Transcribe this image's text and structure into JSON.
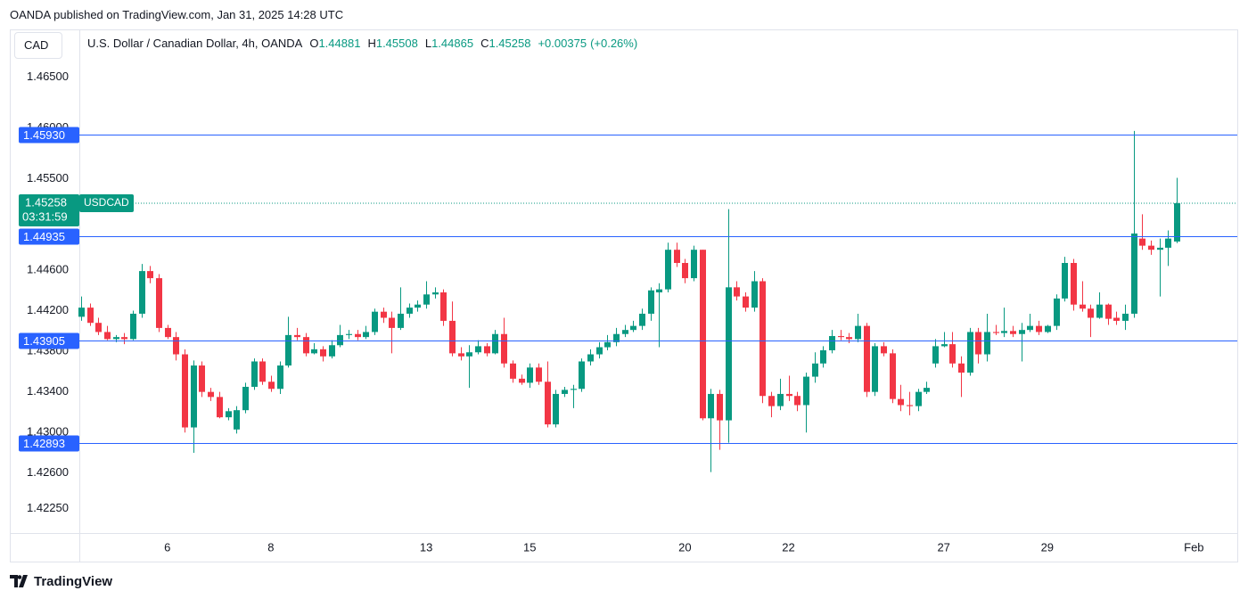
{
  "publisher_note": "OANDA published on TradingView.com, Jan 31, 2025 14:28 UTC",
  "footer": {
    "brand": "TradingView"
  },
  "chart_data": {
    "type": "candlestick",
    "title": "U.S. Dollar / Canadian Dollar, 4h, OANDA",
    "symbol": "USDCAD",
    "currency": "CAD",
    "countdown": "03:31:59",
    "ohlc_keys": [
      "O",
      "H",
      "L",
      "C"
    ],
    "change": {
      "value": 0.00375,
      "label": "+0.00375"
    },
    "change_percent": {
      "value": 0.26,
      "label": "(+0.26%)"
    },
    "up_color": "#089981",
    "down_color": "#f23645",
    "level_color": "#2962ff",
    "grid": false,
    "ylim": [
      1.4201,
      1.4697
    ],
    "yticks": [
      {
        "value": 1.465,
        "label": "1.46500"
      },
      {
        "value": 1.46,
        "label": "1.46000"
      },
      {
        "value": 1.455,
        "label": "1.45500"
      },
      {
        "value": 1.446,
        "label": "1.44600"
      },
      {
        "value": 1.442,
        "label": "1.44200"
      },
      {
        "value": 1.438,
        "label": "1.43800"
      },
      {
        "value": 1.434,
        "label": "1.43400"
      },
      {
        "value": 1.43,
        "label": "1.43000"
      },
      {
        "value": 1.426,
        "label": "1.42600"
      },
      {
        "value": 1.4225,
        "label": "1.42250"
      }
    ],
    "levels": [
      {
        "value": 1.4593,
        "label": "1.45930"
      },
      1.44935,
      1.43905,
      1.42893
    ],
    "categories": [
      null,
      null,
      null,
      null,
      null,
      null,
      null,
      null,
      null,
      null,
      "6",
      null,
      null,
      null,
      null,
      null,
      null,
      null,
      null,
      null,
      null,
      null,
      "8",
      null,
      null,
      null,
      null,
      null,
      null,
      null,
      null,
      null,
      null,
      null,
      null,
      null,
      null,
      null,
      null,
      null,
      "13",
      null,
      null,
      null,
      null,
      null,
      null,
      null,
      null,
      null,
      null,
      null,
      "15",
      null,
      null,
      null,
      null,
      null,
      null,
      null,
      null,
      null,
      null,
      null,
      null,
      null,
      null,
      null,
      null,
      null,
      "20",
      null,
      null,
      null,
      null,
      null,
      null,
      null,
      null,
      null,
      null,
      null,
      "22",
      null,
      null,
      null,
      null,
      null,
      null,
      null,
      null,
      null,
      null,
      null,
      null,
      null,
      null,
      null,
      null,
      null,
      "27",
      null,
      null,
      null,
      null,
      null,
      null,
      null,
      null,
      null,
      null,
      null,
      "29",
      null,
      null,
      null,
      null,
      null,
      null,
      null,
      null,
      null,
      null,
      null,
      null,
      null,
      null,
      null,
      null,
      "Feb"
    ],
    "open": [
      1.4414,
      1.4423,
      1.4408,
      1.4399,
      1.4392,
      1.4394,
      1.4392,
      1.4417,
      1.4459,
      1.4452,
      1.4403,
      1.4394,
      1.4377,
      1.4305,
      1.4366,
      1.434,
      1.4335,
      1.4315,
      1.4303,
      1.4322,
      1.4345,
      1.437,
      1.435,
      1.4343,
      1.4366,
      1.4396,
      1.4394,
      1.4378,
      1.4382,
      1.4375,
      1.4386,
      1.4396,
      1.4397,
      1.4394,
      1.4399,
      1.4419,
      1.4413,
      1.4403,
      1.4417,
      1.4423,
      1.4426,
      1.4436,
      1.4438,
      1.441,
      1.4378,
      1.4375,
      1.4379,
      1.4385,
      1.4378,
      1.4397,
      1.4368,
      1.4353,
      1.4349,
      1.4364,
      1.435,
      1.4308,
      1.4338,
      1.4342,
      1.4343,
      1.437,
      1.4377,
      1.4384,
      1.4389,
      1.4397,
      1.4401,
      1.4405,
      1.4417,
      1.4438,
      1.4441,
      1.448,
      1.4467,
      1.4452,
      1.448,
      1.4314,
      1.4338,
      1.4312,
      1.4443,
      1.4434,
      1.4423,
      1.4449,
      1.4336,
      1.4326,
      1.4338,
      1.4336,
      1.4327,
      1.4355,
      1.4368,
      1.4381,
      1.4395,
      1.4394,
      1.4392,
      1.4405,
      1.434,
      1.4385,
      1.4378,
      1.4333,
      1.4327,
      1.4326,
      1.434,
      1.4368,
      1.4385,
      1.4387,
      1.4368,
      1.4359,
      1.4399,
      1.4377,
      1.4399,
      1.4398,
      1.44,
      1.4397,
      1.4401,
      1.4405,
      1.4399,
      1.4405,
      1.4432,
      1.4467,
      1.4426,
      1.4422,
      1.4413,
      1.4426,
      1.4413,
      1.441,
      1.4417,
      1.4491,
      1.4484,
      1.448,
      1.4482,
      1.44881,
      null,
      null
    ],
    "high": [
      1.4434,
      1.4427,
      1.4413,
      1.4405,
      1.4396,
      1.4398,
      1.442,
      1.4466,
      1.4464,
      1.4456,
      1.4406,
      1.4399,
      1.4382,
      1.4371,
      1.437,
      1.4344,
      1.434,
      1.4324,
      1.4326,
      1.4349,
      1.4373,
      1.4373,
      1.4356,
      1.437,
      1.4414,
      1.4403,
      1.4398,
      1.4388,
      1.4385,
      1.4391,
      1.4406,
      1.4401,
      1.4401,
      1.4405,
      1.4422,
      1.4423,
      1.4419,
      1.4443,
      1.4427,
      1.443,
      1.4449,
      1.4443,
      1.4441,
      1.4429,
      1.4384,
      1.4386,
      1.4391,
      1.4388,
      1.4401,
      1.4413,
      1.4371,
      1.4357,
      1.4368,
      1.4368,
      1.437,
      1.4342,
      1.4345,
      1.4347,
      1.4373,
      1.4382,
      1.4389,
      1.4396,
      1.4403,
      1.4406,
      1.441,
      1.4422,
      1.4443,
      1.4447,
      1.4487,
      1.4487,
      1.4471,
      1.4484,
      1.448,
      1.4343,
      1.4342,
      1.452,
      1.4449,
      1.4438,
      1.4459,
      1.4452,
      1.434,
      1.4353,
      1.4356,
      1.434,
      1.4359,
      1.4379,
      1.4385,
      1.4401,
      1.4401,
      1.4398,
      1.4417,
      1.4408,
      1.4388,
      1.4389,
      1.4382,
      1.4347,
      1.434,
      1.4343,
      1.435,
      1.4392,
      1.4399,
      1.4399,
      1.4375,
      1.4403,
      1.4403,
      1.4417,
      1.4406,
      1.4423,
      1.4405,
      1.4408,
      1.4417,
      1.441,
      1.4406,
      1.4436,
      1.4473,
      1.4471,
      1.4449,
      1.4426,
      1.4438,
      1.4427,
      1.4419,
      1.4426,
      1.4597,
      1.4515,
      1.4489,
      1.4491,
      1.4499,
      1.45508,
      null,
      null
    ],
    "low": [
      1.441,
      1.4405,
      1.4396,
      1.4391,
      1.4389,
      1.4387,
      1.4391,
      1.4413,
      1.4447,
      1.4399,
      1.4392,
      1.4371,
      1.43,
      1.428,
      1.4335,
      1.4331,
      1.4314,
      1.4312,
      1.4299,
      1.4319,
      1.4342,
      1.4347,
      1.434,
      1.4338,
      1.4364,
      1.4391,
      1.4375,
      1.4377,
      1.437,
      1.4373,
      1.4384,
      1.4392,
      1.4391,
      1.4392,
      1.4396,
      1.4408,
      1.4378,
      1.4401,
      1.4413,
      1.4419,
      1.4422,
      1.4432,
      1.4405,
      1.4375,
      1.4371,
      1.4344,
      1.4377,
      1.4375,
      1.4377,
      1.4364,
      1.4349,
      1.4347,
      1.4344,
      1.4347,
      1.4305,
      1.4305,
      1.4335,
      1.4324,
      1.434,
      1.4366,
      1.4373,
      1.4381,
      1.4385,
      1.4394,
      1.4399,
      1.4401,
      1.441,
      1.4384,
      1.4438,
      1.4463,
      1.4447,
      1.4449,
      1.4312,
      1.4261,
      1.4283,
      1.429,
      1.443,
      1.4419,
      1.4419,
      1.4329,
      1.4315,
      1.4322,
      1.4331,
      1.4321,
      1.43,
      1.4349,
      1.4364,
      1.4378,
      1.4391,
      1.4388,
      1.4389,
      1.4335,
      1.4336,
      1.4375,
      1.4329,
      1.4321,
      1.4317,
      1.4321,
      1.4338,
      1.4364,
      1.4384,
      1.4364,
      1.4335,
      1.4356,
      1.4368,
      1.437,
      1.4396,
      1.4394,
      1.4394,
      1.437,
      1.4399,
      1.4396,
      1.4398,
      1.4401,
      1.4429,
      1.442,
      1.4419,
      1.4394,
      1.4412,
      1.4406,
      1.4406,
      1.4401,
      1.4413,
      1.448,
      1.4475,
      1.4434,
      1.4464,
      1.44865,
      null,
      null
    ],
    "close": [
      1.4423,
      1.4408,
      1.4399,
      1.4392,
      1.4394,
      1.4392,
      1.4417,
      1.4459,
      1.4452,
      1.4403,
      1.4394,
      1.4377,
      1.4305,
      1.4366,
      1.434,
      1.4335,
      1.4315,
      1.4321,
      1.4322,
      1.4345,
      1.437,
      1.435,
      1.4343,
      1.4366,
      1.4396,
      1.4394,
      1.4378,
      1.4382,
      1.4375,
      1.4386,
      1.4396,
      1.4397,
      1.4394,
      1.4399,
      1.4419,
      1.4413,
      1.4403,
      1.4417,
      1.4423,
      1.4426,
      1.4436,
      1.4438,
      1.441,
      1.4378,
      1.4375,
      1.4379,
      1.4385,
      1.4378,
      1.4397,
      1.4368,
      1.4353,
      1.4349,
      1.4364,
      1.435,
      1.4308,
      1.4338,
      1.4342,
      1.4343,
      1.437,
      1.4377,
      1.4384,
      1.4389,
      1.4397,
      1.4401,
      1.4405,
      1.4417,
      1.444,
      1.4441,
      1.448,
      1.4467,
      1.4452,
      1.448,
      1.4314,
      1.4338,
      1.4312,
      1.4443,
      1.4434,
      1.4423,
      1.4449,
      1.4336,
      1.4326,
      1.4338,
      1.4336,
      1.4327,
      1.4355,
      1.4368,
      1.4381,
      1.4395,
      1.4394,
      1.4392,
      1.4405,
      1.434,
      1.4385,
      1.4378,
      1.4333,
      1.4327,
      1.4326,
      1.434,
      1.4344,
      1.4385,
      1.4387,
      1.4368,
      1.4359,
      1.4399,
      1.4377,
      1.4399,
      1.4398,
      1.44,
      1.4397,
      1.4401,
      1.4405,
      1.4399,
      1.4405,
      1.4432,
      1.4467,
      1.4426,
      1.4422,
      1.4413,
      1.4426,
      1.4412,
      1.441,
      1.4417,
      1.4496,
      1.4484,
      1.448,
      1.4482,
      1.4491,
      1.45258,
      null,
      null
    ]
  }
}
